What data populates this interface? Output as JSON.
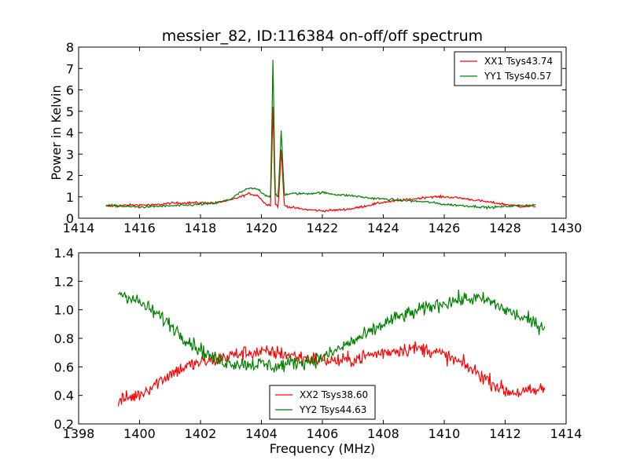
{
  "chart_data": [
    {
      "type": "line",
      "title": "messier_82, ID:116384 on-off/off spectrum",
      "xlabel": "",
      "ylabel": "Power in Kelvin",
      "xlim": [
        1414,
        1430
      ],
      "ylim": [
        0,
        8
      ],
      "xticks": [
        1414,
        1416,
        1418,
        1420,
        1422,
        1424,
        1426,
        1428,
        1430
      ],
      "yticks": [
        0,
        1,
        2,
        3,
        4,
        5,
        6,
        7,
        8
      ],
      "grid": false,
      "legend_position": "top-right",
      "series": [
        {
          "name": "XX1 Tsys43.74",
          "color": "#ff0000",
          "points": [
            [
              1414.9,
              0.55
            ],
            [
              1415.5,
              0.6
            ],
            [
              1416.0,
              0.62
            ],
            [
              1416.5,
              0.62
            ],
            [
              1417.0,
              0.7
            ],
            [
              1417.5,
              0.72
            ],
            [
              1418.0,
              0.72
            ],
            [
              1418.5,
              0.72
            ],
            [
              1419.0,
              0.85
            ],
            [
              1419.3,
              1.0
            ],
            [
              1419.6,
              1.15
            ],
            [
              1419.9,
              1.05
            ],
            [
              1420.1,
              0.7
            ],
            [
              1420.3,
              0.6
            ],
            [
              1420.38,
              5.2
            ],
            [
              1420.45,
              0.7
            ],
            [
              1420.55,
              0.5
            ],
            [
              1420.65,
              3.2
            ],
            [
              1420.75,
              0.6
            ],
            [
              1421.0,
              0.5
            ],
            [
              1421.5,
              0.4
            ],
            [
              1422.0,
              0.35
            ],
            [
              1422.5,
              0.38
            ],
            [
              1423.0,
              0.45
            ],
            [
              1423.5,
              0.6
            ],
            [
              1424.0,
              0.75
            ],
            [
              1424.5,
              0.82
            ],
            [
              1425.0,
              0.9
            ],
            [
              1425.5,
              1.0
            ],
            [
              1426.0,
              1.0
            ],
            [
              1426.5,
              0.95
            ],
            [
              1427.0,
              0.85
            ],
            [
              1427.5,
              0.75
            ],
            [
              1428.0,
              0.65
            ],
            [
              1428.5,
              0.55
            ],
            [
              1429.0,
              0.55
            ]
          ]
        },
        {
          "name": "YY1 Tsys40.57",
          "color": "#008000",
          "points": [
            [
              1414.9,
              0.62
            ],
            [
              1415.5,
              0.55
            ],
            [
              1416.0,
              0.52
            ],
            [
              1416.5,
              0.55
            ],
            [
              1417.0,
              0.58
            ],
            [
              1417.5,
              0.6
            ],
            [
              1418.0,
              0.65
            ],
            [
              1418.5,
              0.7
            ],
            [
              1419.0,
              0.9
            ],
            [
              1419.3,
              1.2
            ],
            [
              1419.6,
              1.4
            ],
            [
              1419.9,
              1.35
            ],
            [
              1420.1,
              1.1
            ],
            [
              1420.3,
              1.0
            ],
            [
              1420.38,
              7.4
            ],
            [
              1420.45,
              1.1
            ],
            [
              1420.55,
              1.0
            ],
            [
              1420.65,
              4.1
            ],
            [
              1420.75,
              1.1
            ],
            [
              1421.0,
              1.15
            ],
            [
              1421.5,
              1.15
            ],
            [
              1422.0,
              1.2
            ],
            [
              1422.5,
              1.1
            ],
            [
              1423.0,
              1.05
            ],
            [
              1423.5,
              0.95
            ],
            [
              1424.0,
              0.9
            ],
            [
              1424.5,
              0.85
            ],
            [
              1425.0,
              0.8
            ],
            [
              1425.5,
              0.75
            ],
            [
              1426.0,
              0.65
            ],
            [
              1426.5,
              0.6
            ],
            [
              1427.0,
              0.55
            ],
            [
              1427.5,
              0.5
            ],
            [
              1428.0,
              0.55
            ],
            [
              1428.5,
              0.6
            ],
            [
              1429.0,
              0.62
            ]
          ]
        }
      ]
    },
    {
      "type": "line",
      "title": "",
      "xlabel": "Frequency (MHz)",
      "ylabel": "",
      "xlim": [
        1398,
        1414
      ],
      "ylim": [
        0.2,
        1.4
      ],
      "xticks": [
        1398,
        1400,
        1402,
        1404,
        1406,
        1408,
        1410,
        1412,
        1414
      ],
      "yticks": [
        0.2,
        0.4,
        0.6,
        0.8,
        1.0,
        1.2,
        1.4
      ],
      "grid": false,
      "legend_position": "bottom-center",
      "series": [
        {
          "name": "XX2 Tsys38.60",
          "color": "#ff0000",
          "points": [
            [
              1399.3,
              0.36
            ],
            [
              1399.6,
              0.38
            ],
            [
              1399.9,
              0.4
            ],
            [
              1400.1,
              0.42
            ],
            [
              1400.5,
              0.48
            ],
            [
              1401.0,
              0.55
            ],
            [
              1401.5,
              0.6
            ],
            [
              1402.0,
              0.63
            ],
            [
              1402.5,
              0.65
            ],
            [
              1403.0,
              0.68
            ],
            [
              1403.5,
              0.7
            ],
            [
              1404.0,
              0.7
            ],
            [
              1404.5,
              0.7
            ],
            [
              1405.0,
              0.68
            ],
            [
              1405.5,
              0.66
            ],
            [
              1406.0,
              0.65
            ],
            [
              1406.5,
              0.64
            ],
            [
              1407.0,
              0.65
            ],
            [
              1407.5,
              0.68
            ],
            [
              1408.0,
              0.7
            ],
            [
              1408.5,
              0.72
            ],
            [
              1409.0,
              0.73
            ],
            [
              1409.5,
              0.72
            ],
            [
              1410.0,
              0.68
            ],
            [
              1410.5,
              0.63
            ],
            [
              1411.0,
              0.57
            ],
            [
              1411.5,
              0.5
            ],
            [
              1412.0,
              0.43
            ],
            [
              1412.5,
              0.42
            ],
            [
              1413.0,
              0.43
            ],
            [
              1413.3,
              0.45
            ]
          ]
        },
        {
          "name": "YY2 Tsys44.63",
          "color": "#008000",
          "points": [
            [
              1399.3,
              1.12
            ],
            [
              1399.6,
              1.1
            ],
            [
              1400.0,
              1.05
            ],
            [
              1400.5,
              0.98
            ],
            [
              1401.0,
              0.9
            ],
            [
              1401.5,
              0.8
            ],
            [
              1402.0,
              0.72
            ],
            [
              1402.5,
              0.65
            ],
            [
              1403.0,
              0.63
            ],
            [
              1403.5,
              0.62
            ],
            [
              1404.0,
              0.62
            ],
            [
              1404.5,
              0.6
            ],
            [
              1405.0,
              0.63
            ],
            [
              1405.5,
              0.64
            ],
            [
              1406.0,
              0.66
            ],
            [
              1406.5,
              0.72
            ],
            [
              1407.0,
              0.78
            ],
            [
              1407.5,
              0.83
            ],
            [
              1408.0,
              0.9
            ],
            [
              1408.5,
              0.95
            ],
            [
              1409.0,
              0.98
            ],
            [
              1409.5,
              1.02
            ],
            [
              1410.0,
              1.05
            ],
            [
              1410.5,
              1.07
            ],
            [
              1411.0,
              1.08
            ],
            [
              1411.5,
              1.06
            ],
            [
              1412.0,
              1.0
            ],
            [
              1412.5,
              0.95
            ],
            [
              1413.0,
              0.9
            ],
            [
              1413.3,
              0.88
            ]
          ]
        }
      ]
    }
  ]
}
